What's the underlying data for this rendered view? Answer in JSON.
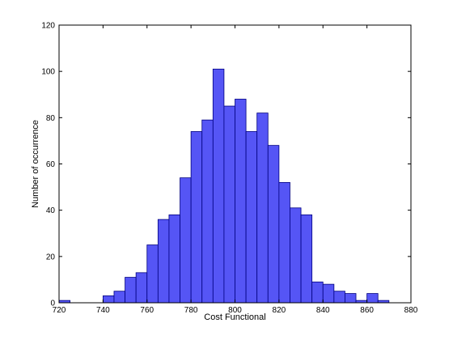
{
  "chart_data": {
    "type": "bar",
    "title": "",
    "xlabel": "Cost Functional",
    "ylabel": "Number of occurrence",
    "xlim": [
      720,
      880
    ],
    "ylim": [
      0,
      120
    ],
    "xticks": [
      720,
      740,
      760,
      780,
      800,
      820,
      840,
      860,
      880
    ],
    "yticks": [
      0,
      20,
      40,
      60,
      80,
      100,
      120
    ],
    "grid": false,
    "bin_width": 5,
    "bins": [
      {
        "x0": 720,
        "x1": 725,
        "value": 1
      },
      {
        "x0": 725,
        "x1": 730,
        "value": 0
      },
      {
        "x0": 730,
        "x1": 735,
        "value": 0
      },
      {
        "x0": 735,
        "x1": 740,
        "value": 0
      },
      {
        "x0": 740,
        "x1": 745,
        "value": 3
      },
      {
        "x0": 745,
        "x1": 750,
        "value": 5
      },
      {
        "x0": 750,
        "x1": 755,
        "value": 11
      },
      {
        "x0": 755,
        "x1": 760,
        "value": 13
      },
      {
        "x0": 760,
        "x1": 765,
        "value": 25
      },
      {
        "x0": 765,
        "x1": 770,
        "value": 36
      },
      {
        "x0": 770,
        "x1": 775,
        "value": 38
      },
      {
        "x0": 775,
        "x1": 780,
        "value": 54
      },
      {
        "x0": 780,
        "x1": 785,
        "value": 74
      },
      {
        "x0": 785,
        "x1": 790,
        "value": 79
      },
      {
        "x0": 790,
        "x1": 795,
        "value": 101
      },
      {
        "x0": 795,
        "x1": 800,
        "value": 85
      },
      {
        "x0": 800,
        "x1": 805,
        "value": 88
      },
      {
        "x0": 805,
        "x1": 810,
        "value": 74
      },
      {
        "x0": 810,
        "x1": 815,
        "value": 82
      },
      {
        "x0": 815,
        "x1": 820,
        "value": 68
      },
      {
        "x0": 820,
        "x1": 825,
        "value": 52
      },
      {
        "x0": 825,
        "x1": 830,
        "value": 41
      },
      {
        "x0": 830,
        "x1": 835,
        "value": 38
      },
      {
        "x0": 835,
        "x1": 840,
        "value": 9
      },
      {
        "x0": 840,
        "x1": 845,
        "value": 8
      },
      {
        "x0": 845,
        "x1": 850,
        "value": 5
      },
      {
        "x0": 850,
        "x1": 855,
        "value": 4
      },
      {
        "x0": 855,
        "x1": 860,
        "value": 1
      },
      {
        "x0": 860,
        "x1": 865,
        "value": 4
      },
      {
        "x0": 865,
        "x1": 870,
        "value": 1
      }
    ],
    "colors": {
      "bar_fill": "#5555f5",
      "bar_edge": "#000080",
      "axis": "#000000",
      "background": "#ffffff"
    }
  }
}
